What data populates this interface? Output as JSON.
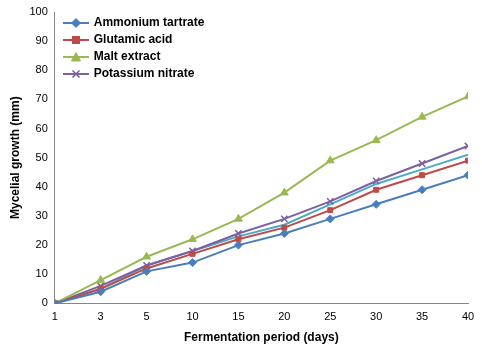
{
  "chart_data": {
    "type": "line",
    "x_label": "Fermentation period (days)",
    "y_label": "Mycelial growth (mm)",
    "categories": [
      "1",
      "3",
      "5",
      "10",
      "15",
      "20",
      "25",
      "30",
      "35",
      "40"
    ],
    "series": [
      {
        "name": "Ammonium tartrate",
        "color": "#4a7ebb",
        "marker": "diamond",
        "values": [
          0,
          4,
          11,
          14,
          20,
          24,
          29,
          34,
          39,
          44
        ]
      },
      {
        "name": "Glutamic acid",
        "color": "#be4b48",
        "marker": "square",
        "values": [
          0,
          5,
          12,
          17,
          22,
          26,
          32,
          39,
          44,
          49
        ]
      },
      {
        "name": "Malt extract",
        "color": "#98b954",
        "marker": "triangle",
        "values": [
          0,
          8,
          16,
          22,
          29,
          38,
          49,
          56,
          64,
          71
        ]
      },
      {
        "name": "Potassium nitrate",
        "color": "#7d60a0",
        "marker": "x",
        "values": [
          0,
          6,
          13,
          18,
          24,
          29,
          35,
          42,
          48,
          54
        ]
      },
      {
        "color": "#4bacc6",
        "marker": "none",
        "values": [
          0,
          5,
          13,
          18,
          23,
          27,
          34,
          41,
          46,
          51
        ]
      }
    ],
    "ylim": [
      0,
      100
    ],
    "yticks": [
      0,
      10,
      20,
      30,
      40,
      50,
      60,
      70,
      80,
      90,
      100
    ],
    "grid": false,
    "legend": "upper left"
  }
}
